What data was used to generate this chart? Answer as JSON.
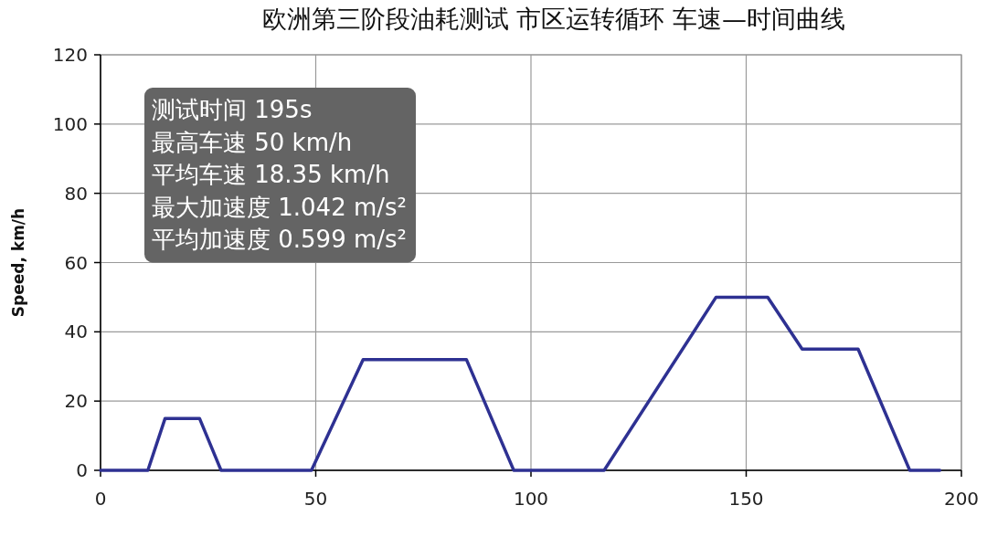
{
  "chart_data": {
    "type": "line",
    "title": "欧洲第三阶段油耗测试 市区运转循环 车速—时间曲线",
    "ylabel": "Speed, km/h",
    "annotations": [
      "测试时间 195s",
      "最高车速 50 km/h",
      "平均车速 18.35 km/h",
      "最大加速度 1.042 m/s²",
      "平均加速度 0.599 m/s²"
    ],
    "x": [
      0,
      11,
      15,
      23,
      28,
      49,
      61,
      85,
      96,
      117,
      143,
      155,
      163,
      176,
      188,
      195
    ],
    "series": [
      {
        "color": "#2e3192",
        "values": [
          0,
          0,
          15,
          15,
          0,
          0,
          32,
          32,
          0,
          0,
          50,
          50,
          35,
          35,
          0,
          0
        ]
      }
    ],
    "xlim": [
      0,
      200
    ],
    "ylim": [
      0,
      120
    ],
    "xticks": [
      0,
      50,
      100,
      150,
      200
    ],
    "yticks": [
      0,
      20,
      40,
      60,
      80,
      100,
      120
    ],
    "grid": true,
    "marker": "none",
    "line_style": "solid"
  }
}
